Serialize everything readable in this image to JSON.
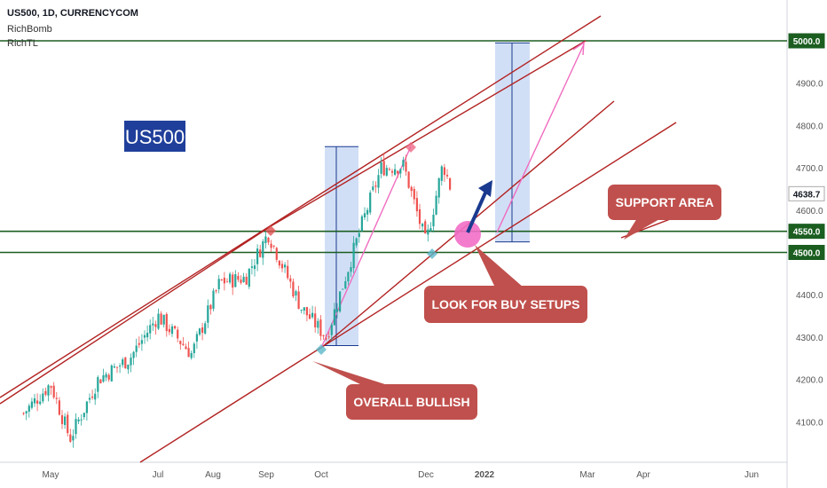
{
  "header": {
    "symbol_line": "US500, 1D, CURRENCYCOM",
    "indicators": [
      "RichBomb",
      "RichTL"
    ]
  },
  "chart_data": {
    "type": "candlestick",
    "title": "US500",
    "xlabel": "",
    "ylabel": "",
    "ylim": [
      4000,
      5060
    ],
    "x_ticks": [
      "May",
      "Jul",
      "Aug",
      "Sep",
      "Oct",
      "Dec",
      "2022",
      "Mar",
      "Apr",
      "Jun"
    ],
    "y_ticks": [
      4100,
      4200,
      4300,
      4400,
      4500,
      4600,
      4700,
      4800,
      4900,
      5000
    ],
    "price_labels": [
      {
        "text": "5000.0",
        "value": 5000,
        "highlight": true
      },
      {
        "text": "4638.7",
        "value": 4638.7,
        "highlight": false
      },
      {
        "text": "4550.0",
        "value": 4550,
        "highlight": true
      },
      {
        "text": "4500.0",
        "value": 4500,
        "highlight": true
      }
    ],
    "horizontal_levels": [
      5000,
      4550,
      4500
    ],
    "price_path": [
      [
        "2021-04-15",
        4120
      ],
      [
        "2021-05-01",
        4190
      ],
      [
        "2021-05-12",
        4060
      ],
      [
        "2021-05-28",
        4200
      ],
      [
        "2021-06-15",
        4250
      ],
      [
        "2021-07-01",
        4350
      ],
      [
        "2021-07-20",
        4260
      ],
      [
        "2021-08-05",
        4430
      ],
      [
        "2021-08-20",
        4440
      ],
      [
        "2021-09-02",
        4545
      ],
      [
        "2021-09-20",
        4370
      ],
      [
        "2021-10-04",
        4300
      ],
      [
        "2021-10-25",
        4570
      ],
      [
        "2021-11-05",
        4700
      ],
      [
        "2021-11-18",
        4705
      ],
      [
        "2021-12-01",
        4520
      ],
      [
        "2021-12-10",
        4710
      ],
      [
        "2021-12-15",
        4638.7
      ]
    ],
    "annotations": [
      {
        "text": "US500",
        "style": "label-box"
      },
      {
        "text": "SUPPORT AREA",
        "style": "callout"
      },
      {
        "text": "LOOK FOR BUY SETUPS",
        "style": "callout"
      },
      {
        "text": "OVERALL BULLISH",
        "style": "callout"
      }
    ],
    "colors": {
      "up": "#26a69a",
      "down": "#ef5350",
      "channel": "#b22222",
      "level": "#1b5e20",
      "callout": "#c0504d",
      "projection": "#f06cc0",
      "range_box": "#c9d9f5",
      "title_box": "#1f3f9a",
      "arrow": "#1a3a8f"
    }
  }
}
